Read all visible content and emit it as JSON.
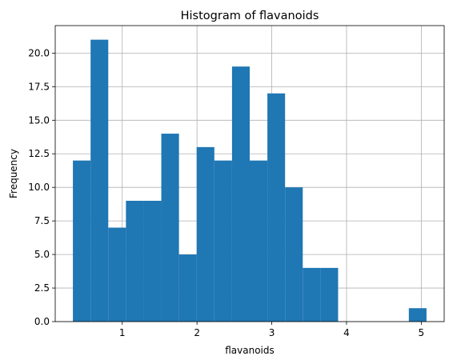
{
  "chart_data": {
    "type": "bar",
    "title": "Histogram of flavanoids",
    "xlabel": "flavanoids",
    "ylabel": "Frequency",
    "bin_edges": [
      0.34,
      0.5765,
      0.813,
      1.0495,
      1.286,
      1.5225,
      1.759,
      1.9955,
      2.232,
      2.4685,
      2.705,
      2.9415,
      3.178,
      3.4145,
      3.651,
      3.8875,
      4.124,
      4.3605,
      4.597,
      4.8335,
      5.07
    ],
    "values": [
      12,
      21,
      7,
      9,
      9,
      14,
      5,
      13,
      12,
      19,
      12,
      17,
      10,
      4,
      4,
      0,
      0,
      0,
      0,
      1
    ],
    "xlim": [
      0.1035,
      5.3065
    ],
    "ylim": [
      0,
      22.05
    ],
    "xticks": [
      1,
      2,
      3,
      4,
      5
    ],
    "xtick_labels": [
      "1",
      "2",
      "3",
      "4",
      "5"
    ],
    "yticks": [
      0,
      2.5,
      5,
      7.5,
      10,
      12.5,
      15,
      17.5,
      20
    ],
    "ytick_labels": [
      "0.0",
      "2.5",
      "5.0",
      "7.5",
      "10.0",
      "12.5",
      "15.0",
      "17.5",
      "20.0"
    ],
    "grid": true,
    "bar_color": "#1f77b4",
    "grid_color": "#b0b0b0"
  }
}
